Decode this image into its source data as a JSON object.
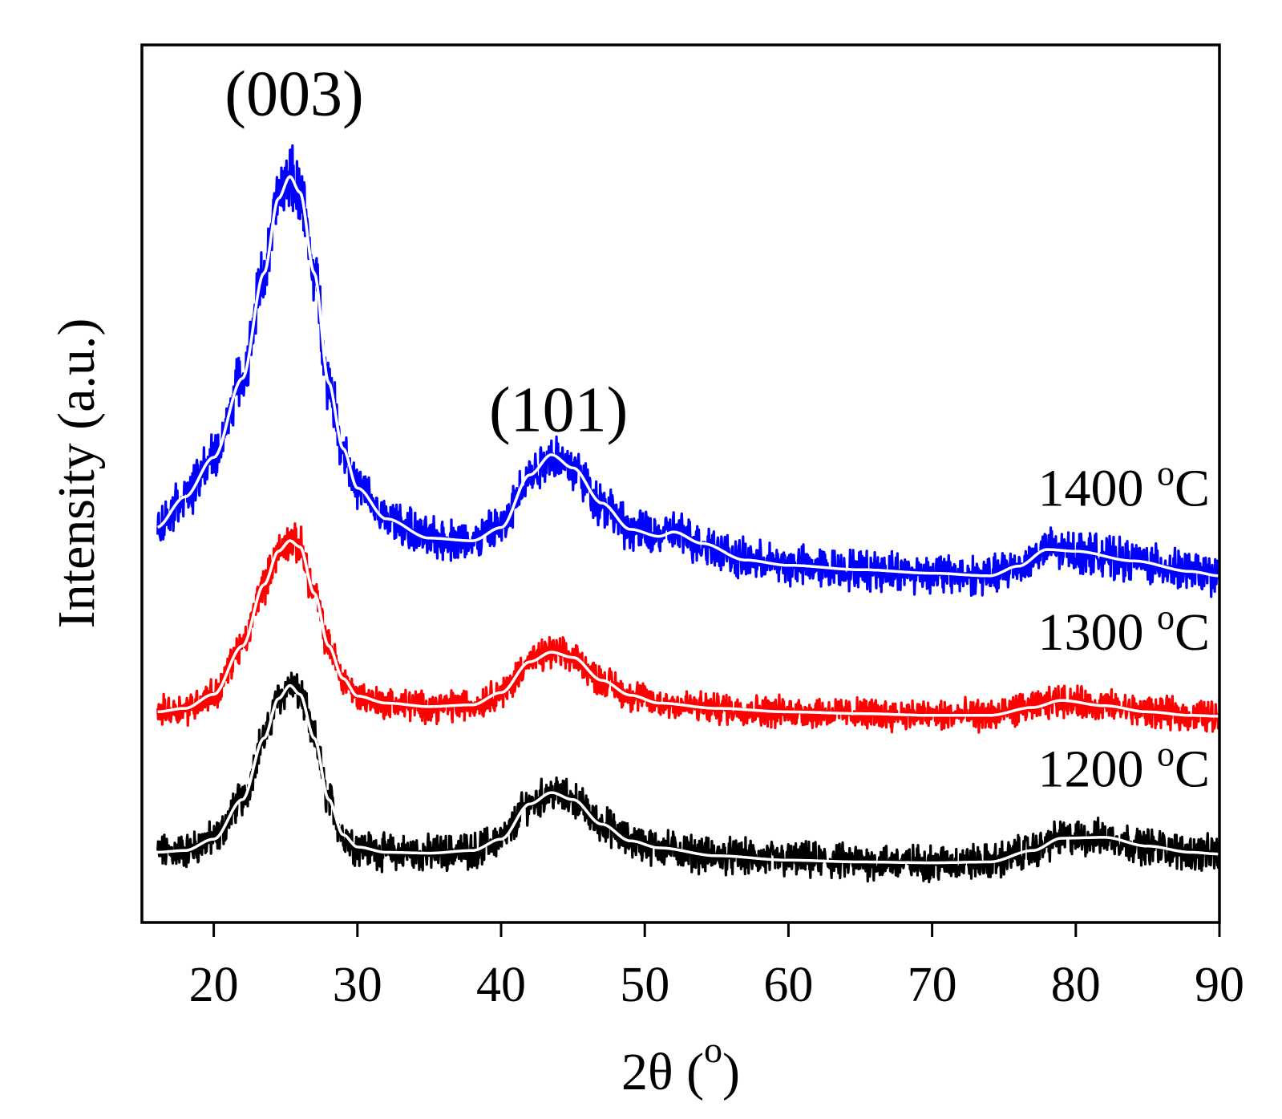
{
  "chart_data": {
    "type": "line",
    "title": "",
    "xlabel": "2θ (",
    "xlabel_unit": "o",
    "xlabel_close": ")",
    "ylabel": "Intensity (a.u.)",
    "xlim": [
      15,
      90
    ],
    "ylim": [
      0,
      100
    ],
    "xticks": [
      20,
      30,
      40,
      50,
      60,
      70,
      80,
      90
    ],
    "y_ticks_shown": false,
    "annotations": [
      {
        "text": "(003)",
        "x": 25.6,
        "y": 92
      },
      {
        "text": "(101)",
        "x": 44.0,
        "y": 56
      }
    ],
    "series": [
      {
        "name": "1200 °C",
        "label_text": "1200",
        "label_sup": "o",
        "label_unit": "C",
        "raw_color": "#000000",
        "fit_color": "#ffffff",
        "noise": 1.6,
        "fit_points": [
          [
            16,
            8
          ],
          [
            18,
            8.2
          ],
          [
            20,
            9.5
          ],
          [
            22,
            14
          ],
          [
            23.5,
            21
          ],
          [
            24.5,
            25.5
          ],
          [
            25.3,
            27
          ],
          [
            26,
            26
          ],
          [
            27,
            21
          ],
          [
            28,
            14
          ],
          [
            29,
            10
          ],
          [
            30,
            8.6
          ],
          [
            32,
            8
          ],
          [
            35,
            7.9
          ],
          [
            38,
            8.2
          ],
          [
            40,
            9.5
          ],
          [
            42,
            13.5
          ],
          [
            43.5,
            14.8
          ],
          [
            45,
            14
          ],
          [
            47,
            11.2
          ],
          [
            49,
            9.3
          ],
          [
            51,
            8.5
          ],
          [
            55,
            7.6
          ],
          [
            60,
            7.1
          ],
          [
            65,
            6.9
          ],
          [
            70,
            6.8
          ],
          [
            74,
            6.9
          ],
          [
            77,
            8.2
          ],
          [
            79,
            9.6
          ],
          [
            82,
            9.7
          ],
          [
            85,
            8.7
          ],
          [
            88,
            8
          ],
          [
            90,
            7.8
          ]
        ]
      },
      {
        "name": "1300 °C",
        "label_text": "1300",
        "label_sup": "o",
        "label_unit": "C",
        "raw_color": "#ff0000",
        "fit_color": "#ffffff",
        "noise": 1.4,
        "fit_points": [
          [
            16,
            24
          ],
          [
            18,
            24.4
          ],
          [
            20,
            26
          ],
          [
            22,
            31.5
          ],
          [
            23.5,
            38.5
          ],
          [
            24.5,
            42.3
          ],
          [
            25.3,
            43.5
          ],
          [
            26,
            42.8
          ],
          [
            27,
            37.5
          ],
          [
            28,
            31.5
          ],
          [
            29,
            27.8
          ],
          [
            30,
            25.8
          ],
          [
            32,
            25
          ],
          [
            35,
            24.6
          ],
          [
            38,
            24.8
          ],
          [
            40,
            26.2
          ],
          [
            42,
            29.7
          ],
          [
            43.5,
            30.8
          ],
          [
            45,
            30.2
          ],
          [
            47,
            27.6
          ],
          [
            49,
            25.9
          ],
          [
            51,
            25
          ],
          [
            55,
            24.4
          ],
          [
            60,
            24
          ],
          [
            65,
            23.8
          ],
          [
            70,
            23.6
          ],
          [
            74,
            23.6
          ],
          [
            77,
            24.5
          ],
          [
            79,
            25.3
          ],
          [
            82,
            24.7
          ],
          [
            85,
            24
          ],
          [
            88,
            23.6
          ],
          [
            90,
            23.5
          ]
        ]
      },
      {
        "name": "1400 °C",
        "label_text": "1400",
        "label_sup": "o",
        "label_unit": "C",
        "raw_color": "#0000ff",
        "fit_color": "#ffffff",
        "noise": 1.5,
        "fit_points": [
          [
            16,
            45
          ],
          [
            18,
            48.5
          ],
          [
            20,
            53
          ],
          [
            22,
            62
          ],
          [
            23.5,
            74
          ],
          [
            24.5,
            82.5
          ],
          [
            25.3,
            85
          ],
          [
            26,
            83.2
          ],
          [
            27,
            74
          ],
          [
            28,
            61.5
          ],
          [
            29,
            54
          ],
          [
            30,
            49.5
          ],
          [
            32,
            46
          ],
          [
            35,
            43.8
          ],
          [
            38,
            43.5
          ],
          [
            40,
            45
          ],
          [
            42,
            51
          ],
          [
            43.5,
            53.3
          ],
          [
            45,
            51.8
          ],
          [
            47,
            47.8
          ],
          [
            49,
            44.8
          ],
          [
            51,
            44
          ],
          [
            52,
            44.5
          ],
          [
            54,
            43.2
          ],
          [
            57,
            41.3
          ],
          [
            60,
            40.7
          ],
          [
            65,
            40.2
          ],
          [
            70,
            39.8
          ],
          [
            74,
            39.5
          ],
          [
            76,
            40.6
          ],
          [
            78,
            42.5
          ],
          [
            80,
            42.3
          ],
          [
            84,
            41.2
          ],
          [
            88,
            40
          ],
          [
            90,
            39.5
          ]
        ]
      }
    ]
  }
}
